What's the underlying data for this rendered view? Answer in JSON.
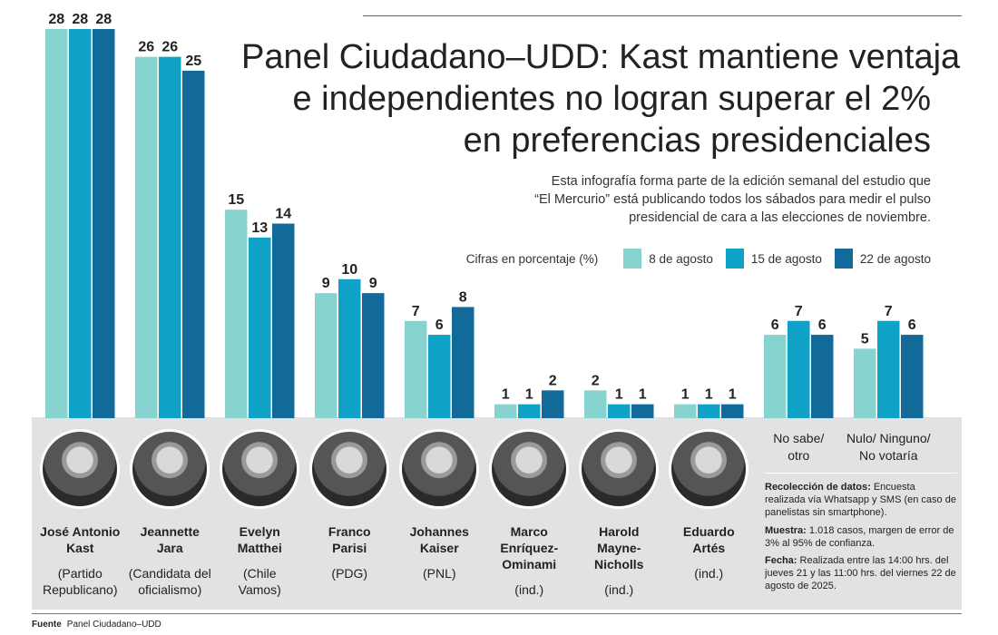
{
  "header": {
    "title_lines": [
      "Panel Ciudadano–UDD: Kast mantiene ventaja",
      "e independientes no logran superar el 2%",
      "en preferencias presidenciales"
    ],
    "subtitle_lines": [
      "Esta infografía forma parte de la edición semanal del estudio que",
      "“El Mercurio” está publicando todos los sábados para medir el pulso",
      "presidencial de cara a las elecciones de noviembre."
    ]
  },
  "legend": {
    "note": "Cifras en porcentaje (%)",
    "entries": [
      {
        "label": "8 de agosto",
        "color": "#86d3cf"
      },
      {
        "label": "15 de agosto",
        "color": "#10a2c6"
      },
      {
        "label": "22 de agosto",
        "color": "#126a9a"
      }
    ]
  },
  "chart_data": {
    "type": "bar",
    "categories": [
      "José Antonio Kast",
      "Jeannette Jara",
      "Evelyn Matthei",
      "Franco Parisi",
      "Johannes Kaiser",
      "Marco Enríquez-Ominami",
      "Harold Mayne-Nicholls",
      "Eduardo Artés",
      "No sabe/ otro",
      "Nulo/ Ninguno/ No votaría"
    ],
    "series": [
      {
        "name": "8 de agosto",
        "values": [
          28,
          26,
          15,
          9,
          7,
          1,
          2,
          1,
          6,
          5
        ]
      },
      {
        "name": "15 de agosto",
        "values": [
          28,
          26,
          13,
          10,
          6,
          1,
          1,
          1,
          7,
          7
        ]
      },
      {
        "name": "22 de agosto",
        "values": [
          28,
          25,
          14,
          9,
          8,
          2,
          1,
          1,
          6,
          6
        ]
      }
    ],
    "unit": "%",
    "ylim": [
      0,
      28
    ],
    "grid": false,
    "legend_position": "top-right"
  },
  "candidates": [
    {
      "name_lines": [
        "José Antonio",
        "Kast"
      ],
      "party_lines": [
        "(Partido",
        "Republicano)"
      ]
    },
    {
      "name_lines": [
        "Jeannette",
        "Jara"
      ],
      "party_lines": [
        "(Candidata del",
        "oficialismo)"
      ]
    },
    {
      "name_lines": [
        "Evelyn",
        "Matthei"
      ],
      "party_lines": [
        "(Chile",
        "Vamos)"
      ]
    },
    {
      "name_lines": [
        "Franco",
        "Parisi"
      ],
      "party_lines": [
        "(PDG)"
      ]
    },
    {
      "name_lines": [
        "Johannes",
        "Kaiser"
      ],
      "party_lines": [
        "(PNL)"
      ]
    },
    {
      "name_lines": [
        "Marco",
        "Enríquez-",
        "Ominami"
      ],
      "party_lines": [
        "(ind.)"
      ]
    },
    {
      "name_lines": [
        "Harold",
        "Mayne-",
        "Nicholls"
      ],
      "party_lines": [
        "(ind.)"
      ]
    },
    {
      "name_lines": [
        "Eduardo",
        "Artés"
      ],
      "party_lines": [
        "(ind.)"
      ]
    }
  ],
  "extra_labels": [
    {
      "lines": [
        "No sabe/",
        "otro"
      ]
    },
    {
      "lines": [
        "Nulo/ Ninguno/",
        "No votaría"
      ]
    }
  ],
  "notes": {
    "recoleccion_label": "Recolección de datos:",
    "recoleccion_text": "Encuesta realizada vía Whatsapp y SMS (en caso de panelistas sin smartphone).",
    "muestra_label": "Muestra:",
    "muestra_text": "1.018 casos, margen de error de 3% al 95% de confianza.",
    "fecha_label": "Fecha:",
    "fecha_text": "Realizada entre las 14:00 hrs. del jueves 21 y las 11:00 hrs. del viernes 22 de agosto de 2025."
  },
  "source": {
    "label": "Fuente",
    "text": "Panel Ciudadano–UDD"
  }
}
